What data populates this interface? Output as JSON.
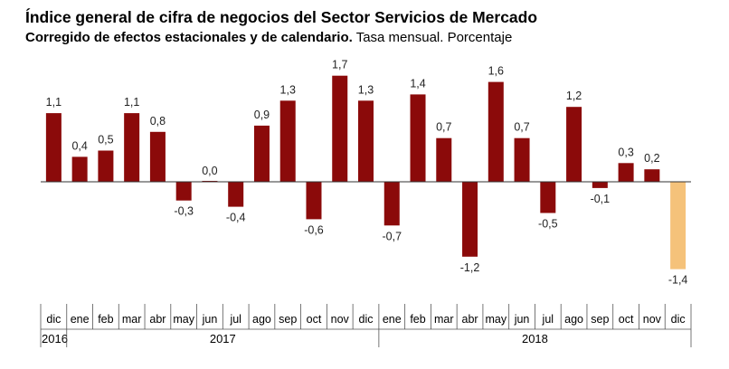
{
  "chart_data": {
    "type": "bar",
    "title": "Índice general de cifra de negocios del Sector Servicios de Mercado",
    "subtitle_bold": "Corregido de efectos estacionales y de calendario.",
    "subtitle_rest": "Tasa mensual. Porcentaje",
    "categories": [
      "dic",
      "ene",
      "feb",
      "mar",
      "abr",
      "may",
      "jun",
      "jul",
      "ago",
      "sep",
      "oct",
      "nov",
      "dic",
      "ene",
      "feb",
      "mar",
      "abr",
      "may",
      "jun",
      "jul",
      "ago",
      "sep",
      "oct",
      "nov",
      "dic"
    ],
    "values": [
      1.1,
      0.4,
      0.5,
      1.1,
      0.8,
      -0.3,
      0.0,
      -0.4,
      0.9,
      1.3,
      -0.6,
      1.7,
      1.3,
      -0.7,
      1.4,
      0.7,
      -1.2,
      1.6,
      0.7,
      -0.5,
      1.2,
      -0.1,
      0.3,
      0.2,
      -1.4
    ],
    "value_labels": [
      "1,1",
      "0,4",
      "0,5",
      "1,1",
      "0,8",
      "-0,3",
      "0,0",
      "-0,4",
      "0,9",
      "1,3",
      "-0,6",
      "1,7",
      "1,3",
      "-0,7",
      "1,4",
      "0,7",
      "-1,2",
      "1,6",
      "0,7",
      "-0,5",
      "1,2",
      "-0,1",
      "0,3",
      "0,2",
      "-1,4"
    ],
    "years": [
      {
        "label": "2016",
        "start": 0,
        "end": 0
      },
      {
        "label": "2017",
        "start": 1,
        "end": 12
      },
      {
        "label": "2018",
        "start": 13,
        "end": 24
      }
    ],
    "ylim": [
      -1.75,
      2.0
    ],
    "colors": {
      "bar": "#8b0a0a",
      "highlight": "#f5c27a",
      "axis": "#000000"
    },
    "highlight_index": 24,
    "xlabel": "",
    "ylabel": ""
  }
}
